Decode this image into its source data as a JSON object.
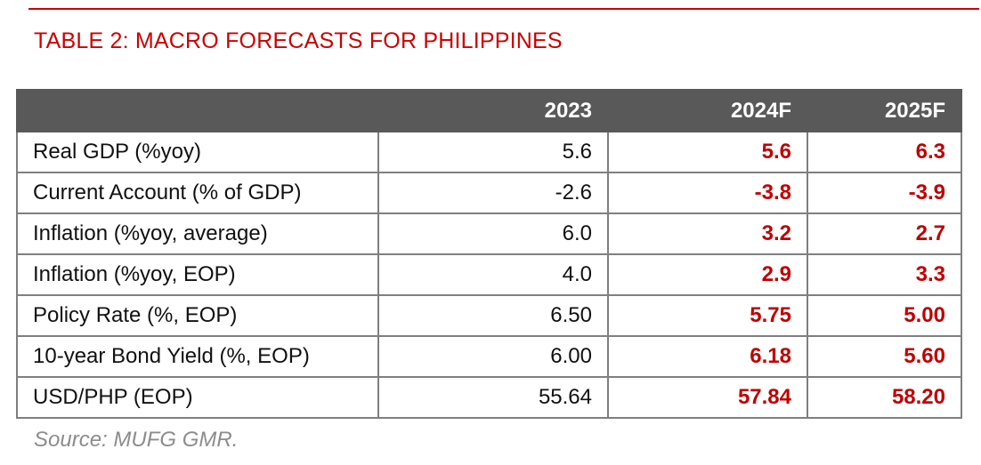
{
  "document": {
    "title": "TABLE 2: MACRO FORECASTS FOR PHILIPPINES",
    "source": "Source: MUFG GMR.",
    "accent_color": "#cc0000",
    "header_bg_color": "#595959",
    "forecast_value_color": "#c00000"
  },
  "table": {
    "header": {
      "label": "",
      "col_2023": "2023",
      "col_2024": "2024F",
      "col_2025": "2025F"
    },
    "rows": [
      {
        "label": "Real GDP (%yoy)",
        "v2023": "5.6",
        "v2024": "5.6",
        "v2025": "6.3"
      },
      {
        "label": "Current Account (% of GDP)",
        "v2023": "-2.6",
        "v2024": "-3.8",
        "v2025": "-3.9"
      },
      {
        "label": "Inflation (%yoy, average)",
        "v2023": "6.0",
        "v2024": "3.2",
        "v2025": "2.7"
      },
      {
        "label": "Inflation (%yoy, EOP)",
        "v2023": "4.0",
        "v2024": "2.9",
        "v2025": "3.3"
      },
      {
        "label": "Policy Rate (%, EOP)",
        "v2023": "6.50",
        "v2024": "5.75",
        "v2025": "5.00"
      },
      {
        "label": "10-year Bond Yield (%, EOP)",
        "v2023": "6.00",
        "v2024": "6.18",
        "v2025": "5.60"
      },
      {
        "label": "USD/PHP (EOP)",
        "v2023": "55.64",
        "v2024": "57.84",
        "v2025": "58.20"
      }
    ]
  }
}
